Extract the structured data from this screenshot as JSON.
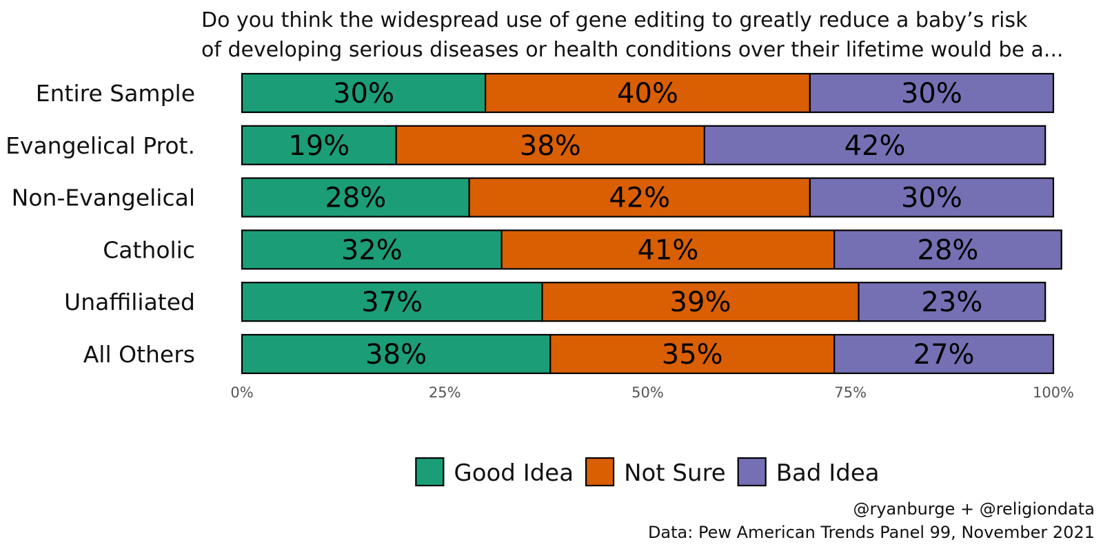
{
  "chart_data": {
    "type": "bar",
    "orientation": "horizontal",
    "stacked": true,
    "title": "Do you think the widespread use of gene editing to greatly reduce a baby's risk of developing serious diseases or health conditions over their lifetime would be a...",
    "title_lines": [
      "Do you think the widespread use of gene editing to greatly reduce a baby’s risk",
      "of developing serious diseases or health conditions over their lifetime would be a..."
    ],
    "categories": [
      "Entire Sample",
      "Evangelical Prot.",
      "Non-Evangelical",
      "Catholic",
      "Unaffiliated",
      "All Others"
    ],
    "series": [
      {
        "name": "Good Idea",
        "color": "#1b9e77",
        "values": [
          30,
          19,
          28,
          32,
          37,
          38
        ],
        "labels": [
          "30%",
          "19%",
          "28%",
          "32%",
          "37%",
          "38%"
        ]
      },
      {
        "name": "Not Sure",
        "color": "#d95f02",
        "values": [
          40,
          38,
          42,
          41,
          39,
          35
        ],
        "labels": [
          "40%",
          "38%",
          "42%",
          "41%",
          "39%",
          "35%"
        ]
      },
      {
        "name": "Bad Idea",
        "color": "#7570b3",
        "values": [
          30,
          42,
          30,
          28,
          23,
          27
        ],
        "labels": [
          "30%",
          "42%",
          "30%",
          "28%",
          "23%",
          "27%"
        ]
      }
    ],
    "xlim": [
      0,
      100
    ],
    "x_ticks": [
      0,
      25,
      50,
      75,
      100
    ],
    "x_tick_labels": [
      "0%",
      "25%",
      "50%",
      "75%",
      "100%"
    ],
    "xlabel": "",
    "ylabel": "",
    "grid": false,
    "legend_position": "bottom",
    "caption_lines": [
      "@ryanburge + @religiondata",
      "Data: Pew American Trends Panel 99, November 2021"
    ]
  }
}
